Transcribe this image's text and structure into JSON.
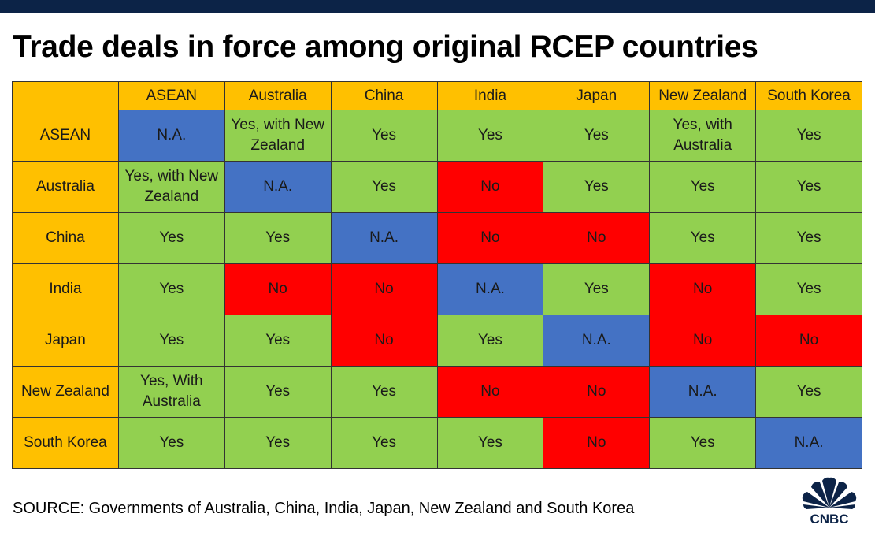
{
  "title": "Trade deals in force among original RCEP countries",
  "table": {
    "columns": [
      "ASEAN",
      "Australia",
      "China",
      "India",
      "Japan",
      "New Zealand",
      "South Korea"
    ],
    "header_color": "#ffc000",
    "rows": [
      {
        "label": "ASEAN",
        "cells": [
          "N.A.",
          "Yes, with New Zealand",
          "Yes",
          "Yes",
          "Yes",
          "Yes, with Australia",
          "Yes"
        ],
        "fills": [
          "#4472c4",
          "#92d050",
          "#92d050",
          "#92d050",
          "#92d050",
          "#92d050",
          "#92d050"
        ]
      },
      {
        "label": "Australia",
        "cells": [
          "Yes, with New Zealand",
          "N.A.",
          "Yes",
          "No",
          "Yes",
          "Yes",
          "Yes"
        ],
        "fills": [
          "#92d050",
          "#4472c4",
          "#92d050",
          "#ff0000",
          "#92d050",
          "#92d050",
          "#92d050"
        ]
      },
      {
        "label": "China",
        "cells": [
          "Yes",
          "Yes",
          "N.A.",
          "No",
          "No",
          "Yes",
          "Yes"
        ],
        "fills": [
          "#92d050",
          "#92d050",
          "#4472c4",
          "#ff0000",
          "#ff0000",
          "#92d050",
          "#92d050"
        ]
      },
      {
        "label": "India",
        "cells": [
          "Yes",
          "No",
          "No",
          "N.A.",
          "Yes",
          "No",
          "Yes"
        ],
        "fills": [
          "#92d050",
          "#ff0000",
          "#ff0000",
          "#4472c4",
          "#92d050",
          "#ff0000",
          "#92d050"
        ]
      },
      {
        "label": "Japan",
        "cells": [
          "Yes",
          "Yes",
          "No",
          "Yes",
          "N.A.",
          "No",
          "No"
        ],
        "fills": [
          "#92d050",
          "#92d050",
          "#ff0000",
          "#92d050",
          "#4472c4",
          "#ff0000",
          "#ff0000"
        ]
      },
      {
        "label": "New Zealand",
        "cells": [
          "Yes, With Australia",
          "Yes",
          "Yes",
          "No",
          "No",
          "N.A.",
          "Yes"
        ],
        "fills": [
          "#92d050",
          "#92d050",
          "#92d050",
          "#ff0000",
          "#ff0000",
          "#4472c4",
          "#92d050"
        ]
      },
      {
        "label": "South Korea",
        "cells": [
          "Yes",
          "Yes",
          "Yes",
          "Yes",
          "No",
          "Yes",
          "N.A."
        ],
        "fills": [
          "#92d050",
          "#92d050",
          "#92d050",
          "#92d050",
          "#ff0000",
          "#92d050",
          "#4472c4"
        ]
      }
    ]
  },
  "source": "SOURCE: Governments of Australia, China, India, Japan, New Zealand and South Korea",
  "logo": "CNBC"
}
